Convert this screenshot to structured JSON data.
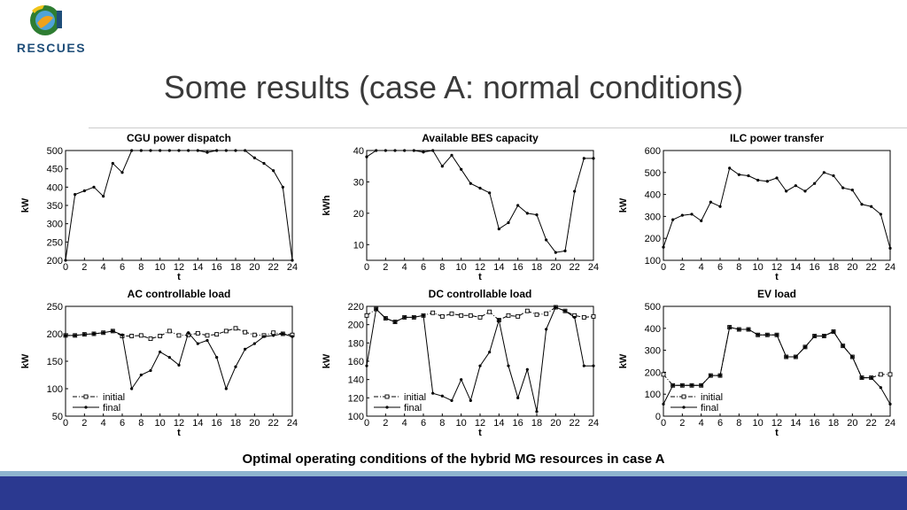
{
  "header": {
    "logo_text": "RESCUES",
    "title": "Some results (case A: normal conditions)"
  },
  "caption": "Optimal operating conditions of the hybrid MG resources in case A",
  "colors": {
    "footer_dark": "#2b3990",
    "footer_light": "#8fb4cf",
    "line": "#000000"
  },
  "chart_data": [
    {
      "type": "line",
      "title": "CGU power dispatch",
      "xlabel": "t",
      "ylabel": "kW",
      "xlim": [
        0,
        24
      ],
      "ylim": [
        200,
        500
      ],
      "xticks": [
        0,
        2,
        4,
        6,
        8,
        10,
        12,
        14,
        16,
        18,
        20,
        22,
        24
      ],
      "yticks": [
        200,
        250,
        300,
        350,
        400,
        450,
        500
      ],
      "grid": false,
      "legend": null,
      "series": [
        {
          "style": "solid-dot",
          "x": [
            0,
            1,
            2,
            3,
            4,
            5,
            6,
            7,
            8,
            9,
            10,
            11,
            12,
            13,
            14,
            15,
            16,
            17,
            18,
            19,
            20,
            21,
            22,
            23,
            24
          ],
          "values": [
            200,
            380,
            390,
            400,
            375,
            465,
            440,
            500,
            500,
            500,
            500,
            500,
            500,
            500,
            500,
            495,
            500,
            500,
            500,
            500,
            480,
            465,
            445,
            400,
            200
          ]
        }
      ]
    },
    {
      "type": "line",
      "title": "Available BES capacity",
      "xlabel": "t",
      "ylabel": "kWh",
      "xlim": [
        0,
        24
      ],
      "ylim": [
        5,
        40
      ],
      "xticks": [
        0,
        2,
        4,
        6,
        8,
        10,
        12,
        14,
        16,
        18,
        20,
        22,
        24
      ],
      "yticks": [
        10,
        20,
        30,
        40
      ],
      "grid": false,
      "legend": null,
      "series": [
        {
          "style": "solid-dot",
          "x": [
            0,
            1,
            2,
            3,
            4,
            5,
            6,
            7,
            8,
            9,
            10,
            11,
            12,
            13,
            14,
            15,
            16,
            17,
            18,
            19,
            20,
            21,
            22,
            23,
            24
          ],
          "values": [
            38,
            40,
            40,
            40,
            40,
            40,
            39.5,
            40,
            35,
            38.5,
            34,
            29.5,
            28,
            26.5,
            15,
            17,
            22.5,
            20,
            19.5,
            11.5,
            7.5,
            8,
            27,
            37.5,
            37.5
          ]
        }
      ]
    },
    {
      "type": "line",
      "title": "ILC power transfer",
      "xlabel": "t",
      "ylabel": "kW",
      "xlim": [
        0,
        24
      ],
      "ylim": [
        100,
        600
      ],
      "xticks": [
        0,
        2,
        4,
        6,
        8,
        10,
        12,
        14,
        16,
        18,
        20,
        22,
        24
      ],
      "yticks": [
        100,
        200,
        300,
        400,
        500,
        600
      ],
      "grid": false,
      "legend": null,
      "series": [
        {
          "style": "solid-dot",
          "x": [
            0,
            1,
            2,
            3,
            4,
            5,
            6,
            7,
            8,
            9,
            10,
            11,
            12,
            13,
            14,
            15,
            16,
            17,
            18,
            19,
            20,
            21,
            22,
            23,
            24
          ],
          "values": [
            160,
            285,
            305,
            310,
            280,
            365,
            345,
            520,
            490,
            485,
            465,
            460,
            475,
            415,
            440,
            415,
            450,
            500,
            485,
            430,
            420,
            355,
            345,
            310,
            155
          ]
        }
      ]
    },
    {
      "type": "line",
      "title": "AC controllable load",
      "xlabel": "t",
      "ylabel": "kW",
      "xlim": [
        0,
        24
      ],
      "ylim": [
        50,
        250
      ],
      "xticks": [
        0,
        2,
        4,
        6,
        8,
        10,
        12,
        14,
        16,
        18,
        20,
        22,
        24
      ],
      "yticks": [
        50,
        100,
        150,
        200,
        250
      ],
      "grid": false,
      "legend": "bottom-left",
      "series": [
        {
          "name": "initial",
          "style": "dashdot-square",
          "x": [
            0,
            1,
            2,
            3,
            4,
            5,
            6,
            7,
            8,
            9,
            10,
            11,
            12,
            13,
            14,
            15,
            16,
            17,
            18,
            19,
            20,
            21,
            22,
            23,
            24
          ],
          "values": [
            197,
            197,
            199,
            200,
            202,
            205,
            196,
            196,
            197,
            191,
            196,
            205,
            197,
            198,
            201,
            197,
            199,
            205,
            210,
            203,
            198,
            197,
            202,
            200,
            198
          ]
        },
        {
          "name": "final",
          "style": "solid-dot",
          "x": [
            0,
            1,
            2,
            3,
            4,
            5,
            6,
            7,
            8,
            9,
            10,
            11,
            12,
            13,
            14,
            15,
            16,
            17,
            18,
            19,
            20,
            21,
            22,
            23,
            24
          ],
          "values": [
            197,
            197,
            199,
            200,
            202,
            205,
            198,
            100,
            125,
            133,
            167,
            157,
            143,
            202,
            182,
            188,
            157,
            100,
            140,
            172,
            182,
            195,
            197,
            200,
            195
          ]
        }
      ]
    },
    {
      "type": "line",
      "title": "DC controllable load",
      "xlabel": "t",
      "ylabel": "kW",
      "xlim": [
        0,
        24
      ],
      "ylim": [
        100,
        220
      ],
      "xticks": [
        0,
        2,
        4,
        6,
        8,
        10,
        12,
        14,
        16,
        18,
        20,
        22,
        24
      ],
      "yticks": [
        100,
        120,
        140,
        160,
        180,
        200,
        220
      ],
      "grid": false,
      "legend": "bottom-left",
      "series": [
        {
          "name": "initial",
          "style": "dashdot-square",
          "x": [
            0,
            1,
            2,
            3,
            4,
            5,
            6,
            7,
            8,
            9,
            10,
            11,
            12,
            13,
            14,
            15,
            16,
            17,
            18,
            19,
            20,
            21,
            22,
            23,
            24
          ],
          "values": [
            210,
            217,
            207,
            203,
            208,
            208,
            210,
            213,
            209,
            212,
            210,
            210,
            208,
            214,
            205,
            210,
            209,
            215,
            211,
            212,
            219,
            215,
            210,
            208,
            209
          ]
        },
        {
          "name": "final",
          "style": "solid-dot",
          "x": [
            0,
            1,
            2,
            3,
            4,
            5,
            6,
            7,
            8,
            9,
            10,
            11,
            12,
            13,
            14,
            15,
            16,
            17,
            18,
            19,
            20,
            21,
            22,
            23,
            24
          ],
          "values": [
            155,
            217,
            207,
            203,
            208,
            208,
            210,
            125,
            122,
            117,
            140,
            117,
            155,
            170,
            205,
            155,
            120,
            151,
            105,
            195,
            219,
            215,
            208,
            155,
            155
          ]
        }
      ]
    },
    {
      "type": "line",
      "title": "EV load",
      "xlabel": "t",
      "ylabel": "kW",
      "xlim": [
        0,
        24
      ],
      "ylim": [
        0,
        500
      ],
      "xticks": [
        0,
        2,
        4,
        6,
        8,
        10,
        12,
        14,
        16,
        18,
        20,
        22,
        24
      ],
      "yticks": [
        0,
        100,
        200,
        300,
        400,
        500
      ],
      "grid": false,
      "legend": "bottom-left",
      "series": [
        {
          "name": "initial",
          "style": "dashdot-square",
          "x": [
            0,
            1,
            2,
            3,
            4,
            5,
            6,
            7,
            8,
            9,
            10,
            11,
            12,
            13,
            14,
            15,
            16,
            17,
            18,
            19,
            20,
            21,
            22,
            23,
            24
          ],
          "values": [
            190,
            140,
            140,
            140,
            140,
            185,
            185,
            405,
            395,
            395,
            370,
            370,
            370,
            270,
            270,
            315,
            365,
            365,
            385,
            320,
            270,
            175,
            175,
            190,
            190
          ]
        },
        {
          "name": "final",
          "style": "solid-dot",
          "x": [
            0,
            1,
            2,
            3,
            4,
            5,
            6,
            7,
            8,
            9,
            10,
            11,
            12,
            13,
            14,
            15,
            16,
            17,
            18,
            19,
            20,
            21,
            22,
            23,
            24
          ],
          "values": [
            55,
            140,
            140,
            140,
            140,
            185,
            185,
            405,
            395,
            395,
            370,
            370,
            370,
            270,
            270,
            315,
            365,
            365,
            385,
            320,
            270,
            175,
            175,
            130,
            55
          ]
        }
      ]
    }
  ]
}
